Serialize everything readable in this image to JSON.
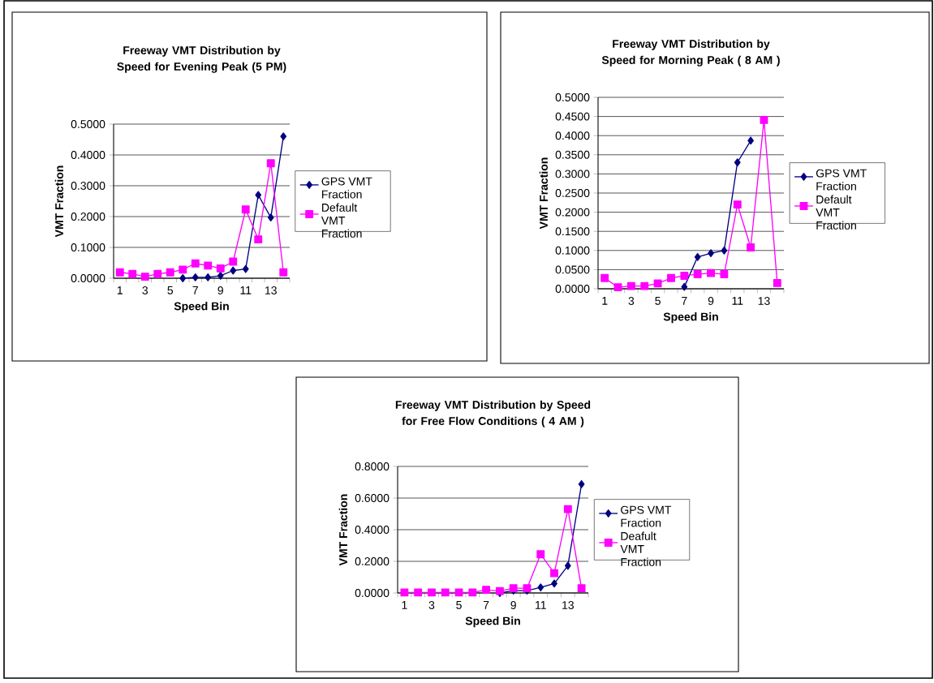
{
  "chart_data": [
    {
      "type": "line",
      "title": "Freeway VMT Distribution by Speed for Evening Peak (5 PM)",
      "xlabel": "Speed Bin",
      "ylabel": "VMT Fraction",
      "categories": [
        "1",
        null,
        "3",
        null,
        "5",
        null,
        "7",
        null,
        "9",
        null,
        "11",
        null,
        "13",
        null
      ],
      "series": [
        {
          "name": "GPS VMT Fraction",
          "color": "#000080",
          "marker": "diamond",
          "values": [
            null,
            null,
            null,
            null,
            null,
            0.0,
            0.003,
            0.003,
            0.008,
            0.025,
            0.03,
            0.27,
            0.197,
            0.46
          ]
        },
        {
          "name": "Default VMT Fraction",
          "color": "#ff00ff",
          "marker": "square",
          "values": [
            0.019,
            0.014,
            0.005,
            0.014,
            0.019,
            0.028,
            0.048,
            0.041,
            0.032,
            0.054,
            0.223,
            0.126,
            0.373,
            0.019
          ]
        }
      ],
      "ylim": [
        0,
        0.5
      ],
      "yticks": [
        {
          "value": 0,
          "label": "0.0000"
        },
        {
          "value": 0.1,
          "label": "0.1000"
        },
        {
          "value": 0.2,
          "label": "0.2000"
        },
        {
          "value": 0.3,
          "label": "0.3000"
        },
        {
          "value": 0.4,
          "label": "0.4000"
        },
        {
          "value": 0.5,
          "label": "0.5000"
        }
      ],
      "grid": "y",
      "legend": "right",
      "line_style": "solid"
    },
    {
      "type": "line",
      "title": "Freeway VMT Distribution by Speed for Morning Peak ( 8 AM )",
      "xlabel": "Speed Bin",
      "ylabel": "VMT Fraction",
      "categories": [
        "1",
        null,
        "3",
        null,
        "5",
        null,
        "7",
        null,
        "9",
        null,
        "11",
        null,
        "13",
        null
      ],
      "series": [
        {
          "name": "GPS VMT Fraction",
          "color": "#000080",
          "marker": "diamond",
          "values": [
            null,
            null,
            null,
            null,
            null,
            null,
            0.005,
            0.083,
            0.093,
            0.1,
            0.33,
            0.387,
            null,
            null
          ]
        },
        {
          "name": "Default VMT Fraction",
          "color": "#ff00ff",
          "marker": "square",
          "values": [
            0.028,
            0.004,
            0.007,
            0.007,
            0.014,
            0.028,
            0.034,
            0.038,
            0.041,
            0.038,
            0.22,
            0.108,
            0.441,
            0.015
          ]
        }
      ],
      "ylim": [
        0,
        0.5
      ],
      "yticks": [
        {
          "value": 0,
          "label": "0.0000"
        },
        {
          "value": 0.05,
          "label": "0.0500"
        },
        {
          "value": 0.1,
          "label": "0.1000"
        },
        {
          "value": 0.15,
          "label": "0.1500"
        },
        {
          "value": 0.2,
          "label": "0.2000"
        },
        {
          "value": 0.25,
          "label": "0.2500"
        },
        {
          "value": 0.3,
          "label": "0.3000"
        },
        {
          "value": 0.35,
          "label": "0.3500"
        },
        {
          "value": 0.4,
          "label": "0.4000"
        },
        {
          "value": 0.45,
          "label": "0.4500"
        },
        {
          "value": 0.5,
          "label": "0.5000"
        }
      ],
      "grid": "y",
      "legend": "right",
      "line_style": "solid"
    },
    {
      "type": "line",
      "title": "Freeway VMT Distribution by Speed for  Free Flow Conditions ( 4 AM )",
      "xlabel": "Speed Bin",
      "ylabel": "VMT Fraction",
      "categories": [
        "1",
        null,
        "3",
        null,
        "5",
        null,
        "7",
        null,
        "9",
        null,
        "11",
        null,
        "13",
        null
      ],
      "series": [
        {
          "name": "GPS VMT Fraction",
          "color": "#000080",
          "marker": "diamond",
          "values": [
            null,
            null,
            null,
            null,
            null,
            null,
            null,
            0.0,
            0.015,
            0.015,
            0.035,
            0.06,
            0.172,
            0.688
          ]
        },
        {
          "name": "Deafult VMT Fraction",
          "color": "#ff00ff",
          "marker": "square",
          "values": [
            0.003,
            0.003,
            0.003,
            0.003,
            0.003,
            0.003,
            0.02,
            0.012,
            0.03,
            0.03,
            0.245,
            0.125,
            0.53,
            0.03
          ]
        }
      ],
      "ylim": [
        0,
        0.8
      ],
      "yticks": [
        {
          "value": 0,
          "label": "0.0000"
        },
        {
          "value": 0.2,
          "label": "0.2000"
        },
        {
          "value": 0.4,
          "label": "0.4000"
        },
        {
          "value": 0.6,
          "label": "0.6000"
        },
        {
          "value": 0.8,
          "label": "0.8000"
        }
      ],
      "grid": "y",
      "legend": "right",
      "line_style": "solid"
    }
  ]
}
